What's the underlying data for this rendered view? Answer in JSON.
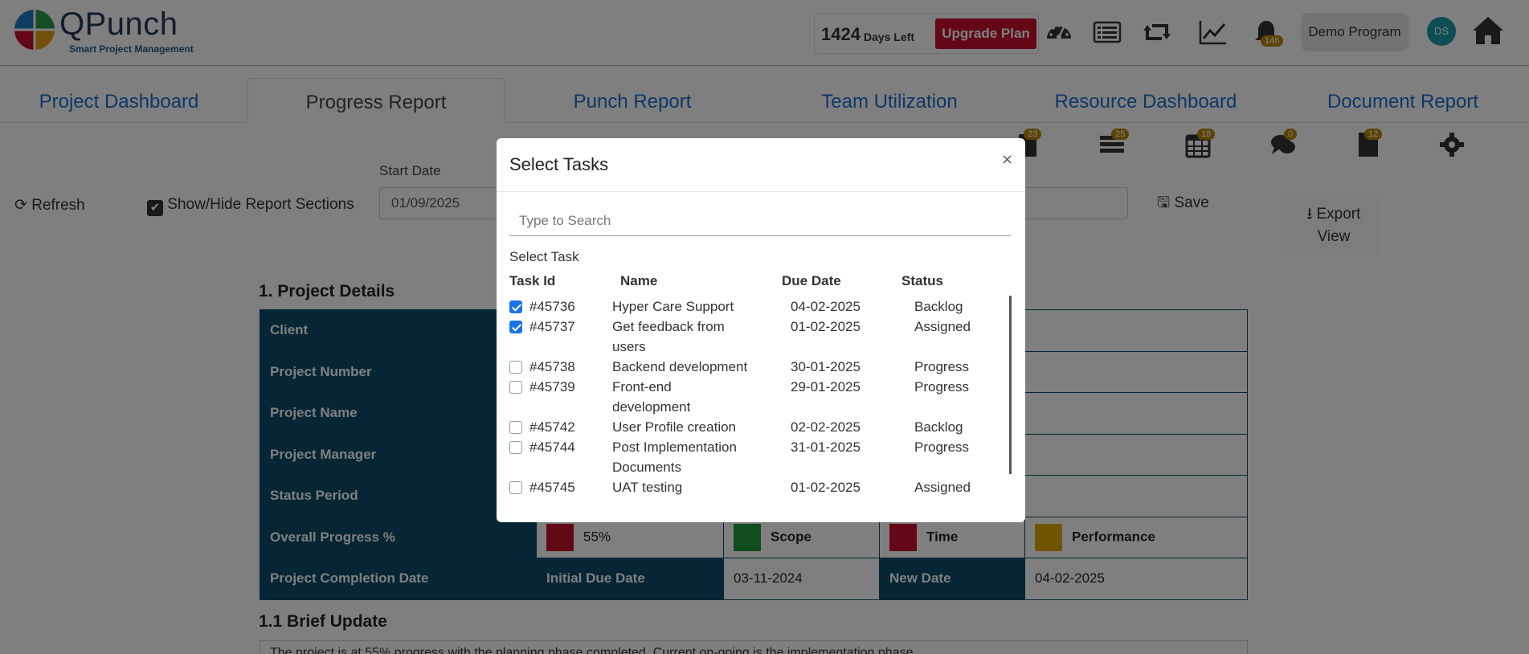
{
  "header": {
    "logo_text": "QPunch",
    "logo_subtitle": "Smart Project Management",
    "days_count": "1424",
    "days_label": "Days Left",
    "upgrade_label": "Upgrade Plan",
    "notification_count": "146",
    "program_label": "Demo Program",
    "avatar_initials": "DS"
  },
  "tabs": [
    {
      "label": "Project Dashboard"
    },
    {
      "label": "Progress Report"
    },
    {
      "label": "Punch Report"
    },
    {
      "label": "Team Utilization"
    },
    {
      "label": "Resource Dashboard"
    },
    {
      "label": "Document Report"
    }
  ],
  "toolbar_icons": {
    "b1": "23",
    "b2": "25",
    "b3": "18",
    "b4": "0",
    "b5": "12"
  },
  "controls": {
    "refresh_label": "Refresh",
    "show_hide_label": "Show/Hide Report Sections",
    "start_date_label": "Start Date",
    "start_date_value": "01/09/2025",
    "save_label": "Save",
    "export_label_1": "Export",
    "export_label_2": "View"
  },
  "details": {
    "section_title": "1. Project Details",
    "rows": {
      "client": "Client",
      "project_number": "Project Number",
      "project_name": "Project Name",
      "project_manager": "Project Manager",
      "status_period": "Status Period",
      "overall_progress": "Overall Progress %",
      "completion_date": "Project Completion Date"
    },
    "progress_value": "55%",
    "scope_label": "Scope",
    "time_label": "Time",
    "performance_label": "Performance",
    "initial_due_label": "Initial Due Date",
    "initial_due_value": "03-11-2024",
    "new_date_label": "New Date",
    "new_date_value": "04-02-2025",
    "colors": {
      "progress": "#c8102e",
      "scope": "#1e9a3a",
      "time": "#c8102e",
      "performance": "#e0a800"
    }
  },
  "brief": {
    "section_title": "1.1 Brief Update",
    "text": "The project is at 55% progress with the planning phase completed. Current on-going is the implementation phase."
  },
  "modal": {
    "title": "Select Tasks",
    "close": "×",
    "search_placeholder": "Type to Search",
    "select_task_label": "Select Task",
    "columns": {
      "id": "Task Id",
      "name": "Name",
      "due": "Due Date",
      "status": "Status"
    },
    "tasks": [
      {
        "id": "#45736",
        "name": "Hyper Care Support",
        "due": "04-02-2025",
        "status": "Backlog",
        "checked": true
      },
      {
        "id": "#45737",
        "name": "Get feedback from users",
        "due": "01-02-2025",
        "status": "Assigned",
        "checked": true
      },
      {
        "id": "#45738",
        "name": "Backend development",
        "due": "30-01-2025",
        "status": "Progress",
        "checked": false
      },
      {
        "id": "#45739",
        "name": "Front-end development",
        "due": "29-01-2025",
        "status": "Progress",
        "checked": false
      },
      {
        "id": "#45742",
        "name": "User Profile creation",
        "due": "02-02-2025",
        "status": "Backlog",
        "checked": false
      },
      {
        "id": "#45744",
        "name": "Post Implementation Documents",
        "due": "31-01-2025",
        "status": "Progress",
        "checked": false
      },
      {
        "id": "#45745",
        "name": "UAT testing",
        "due": "01-02-2025",
        "status": "Assigned",
        "checked": false
      }
    ]
  }
}
